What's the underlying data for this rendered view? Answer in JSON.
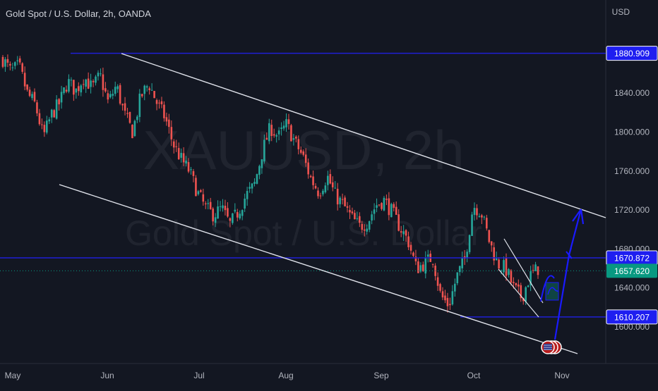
{
  "header": {
    "symbol_title": "Gold Spot / U.S. Dollar, 2h, OANDA",
    "currency": "USD"
  },
  "watermark": {
    "symbol": "XAUUSD, 2h",
    "description": "Gold Spot / U.S. Dollar"
  },
  "colors": {
    "background": "#131722",
    "bullish": "#26a69a",
    "bearish": "#ef5350",
    "level_line": "#1f1fd6",
    "label_blue": "#1e1ef0",
    "current_price": "#089981",
    "channel": "#e0e3eb",
    "arrow": "#1a1aff"
  },
  "chart_data": {
    "type": "candlestick",
    "title": "Gold Spot / U.S. Dollar, 2h, OANDA",
    "ylabel": "USD",
    "ylim": [
      1575,
      1915
    ],
    "x_ticks": [
      "May",
      "Jun",
      "Jul",
      "Aug",
      "Sep",
      "Oct",
      "Nov"
    ],
    "y_ticks": [
      1600,
      1640,
      1680,
      1720,
      1760,
      1800,
      1840
    ],
    "price_path": [
      1875,
      1862,
      1868,
      1840,
      1828,
      1795,
      1818,
      1830,
      1852,
      1842,
      1857,
      1845,
      1858,
      1830,
      1848,
      1818,
      1800,
      1836,
      1850,
      1830,
      1815,
      1788,
      1772,
      1760,
      1738,
      1722,
      1715,
      1722,
      1705,
      1718,
      1735,
      1745,
      1780,
      1805,
      1795,
      1808,
      1790,
      1775,
      1752,
      1738,
      1755,
      1735,
      1725,
      1712,
      1703,
      1708,
      1725,
      1730,
      1718,
      1702,
      1688,
      1660,
      1665,
      1672,
      1632,
      1622,
      1652,
      1670,
      1725,
      1718,
      1688,
      1665,
      1660,
      1640,
      1630,
      1652,
      1660
    ],
    "levels": [
      {
        "label": "1880.909",
        "value": 1880.909
      },
      {
        "label": "1670.872",
        "value": 1670.872
      },
      {
        "label": "1610.207",
        "value": 1610.207
      }
    ],
    "current_price": {
      "label": "1657.620",
      "value": 1657.62
    }
  },
  "axis": {
    "x_labels": [
      "May",
      "Jun",
      "Jul",
      "Aug",
      "Sep",
      "Oct",
      "Nov"
    ],
    "y_labels": [
      "1600.000",
      "1640.000",
      "1680.000",
      "1720.000",
      "1760.000",
      "1800.000",
      "1840.000"
    ]
  }
}
